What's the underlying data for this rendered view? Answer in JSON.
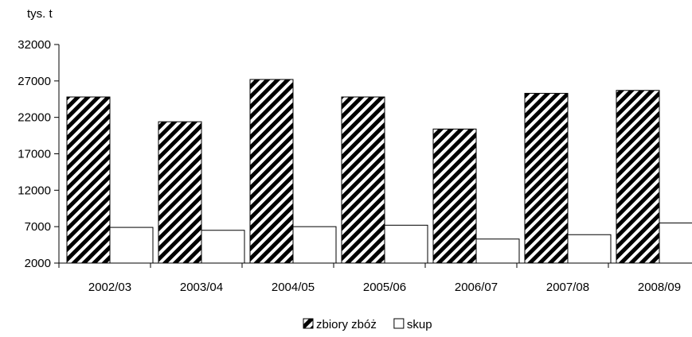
{
  "chart_data": {
    "type": "bar",
    "ylabel": "tys. t",
    "categories": [
      "2002/03",
      "2003/04",
      "2004/05",
      "2005/06",
      "2006/07",
      "2007/08",
      "2008/09"
    ],
    "series": [
      {
        "name": "zbiory zbóż",
        "values": [
          24800,
          21400,
          27200,
          24800,
          20400,
          25300,
          25700
        ],
        "fill": "hatched"
      },
      {
        "name": "skup",
        "values": [
          6900,
          6500,
          7000,
          7200,
          5300,
          5900,
          7500
        ],
        "fill": "white"
      }
    ],
    "ylim": [
      2000,
      32000
    ],
    "yticks": [
      2000,
      7000,
      12000,
      17000,
      22000,
      27000,
      32000
    ],
    "grid": false,
    "legend_position": "bottom-center",
    "colors": {
      "bar_outline": "#000000",
      "hatch_stripe": "#000000",
      "hatch_bg": "#ffffff",
      "axis": "#000000"
    }
  }
}
